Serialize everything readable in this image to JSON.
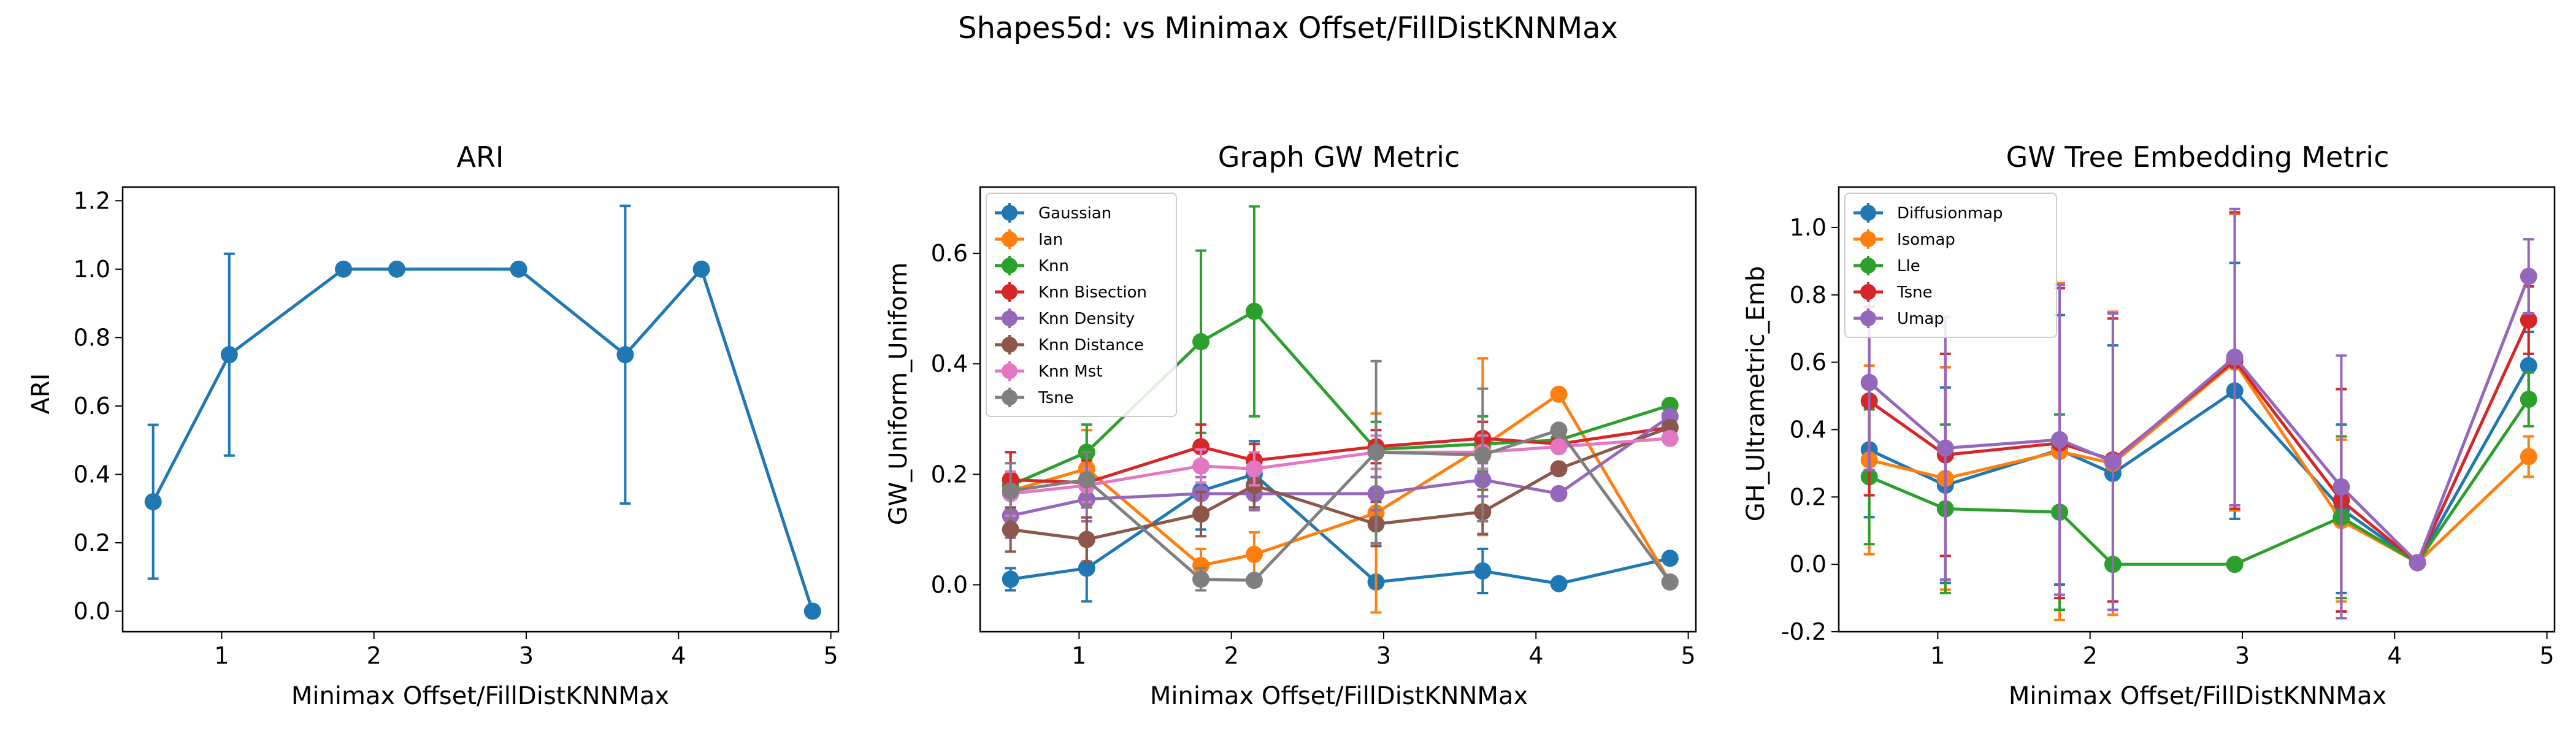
{
  "figure": {
    "suptitle": "Shapes5d: vs Minimax Offset/FillDistKNNMax"
  },
  "colors": {
    "blue": "#1f77b4",
    "orange": "#ff7f0e",
    "green": "#2ca02c",
    "red": "#d62728",
    "purple": "#9467bd",
    "brown": "#8c564b",
    "pink": "#e377c2",
    "gray": "#7f7f7f"
  },
  "chart_data": [
    {
      "type": "line",
      "title": "ARI",
      "xlabel": "Minimax Offset/FillDistKNNMax",
      "ylabel": "ARI",
      "xlim": [
        0.35,
        5.05
      ],
      "ylim": [
        -0.06,
        1.24
      ],
      "xticks": [
        1,
        2,
        3,
        4,
        5
      ],
      "yticks": [
        0.0,
        0.2,
        0.4,
        0.6,
        0.8,
        1.0,
        1.2
      ],
      "x": [
        0.55,
        1.05,
        1.8,
        2.15,
        2.95,
        3.65,
        4.15,
        4.88
      ],
      "legend": null,
      "series": [
        {
          "color": "#1f77b4",
          "y": [
            0.32,
            0.75,
            1.0,
            1.0,
            1.0,
            0.75,
            1.0,
            0.0
          ],
          "err": [
            0.225,
            0.295,
            0,
            0,
            0,
            0.435,
            0,
            0
          ]
        }
      ]
    },
    {
      "type": "line",
      "title": "Graph GW Metric",
      "xlabel": "Minimax Offset/FillDistKNNMax",
      "ylabel": "GW_Uniform_Uniform",
      "xlim": [
        0.35,
        5.05
      ],
      "ylim": [
        -0.085,
        0.72
      ],
      "xticks": [
        1,
        2,
        3,
        4,
        5
      ],
      "yticks": [
        0.0,
        0.2,
        0.4,
        0.6
      ],
      "x": [
        0.55,
        1.05,
        1.8,
        2.15,
        2.95,
        3.65,
        4.15,
        4.88
      ],
      "legend": "upper left",
      "series": [
        {
          "name": "Gaussian",
          "color": "#1f77b4",
          "y": [
            0.01,
            0.03,
            0.17,
            0.2,
            0.005,
            0.025,
            0.002,
            0.048
          ],
          "err": [
            0.02,
            0.06,
            0.07,
            0.06,
            0.0,
            0.04,
            0.0,
            0.0
          ]
        },
        {
          "name": "Ian",
          "color": "#ff7f0e",
          "y": [
            0.17,
            0.21,
            0.035,
            0.055,
            0.13,
            0.25,
            0.345,
            0.005
          ],
          "err": [
            0.07,
            0.07,
            0.03,
            0.04,
            0.18,
            0.16,
            0.0,
            0.0
          ]
        },
        {
          "name": "Knn",
          "color": "#2ca02c",
          "y": [
            0.18,
            0.24,
            0.44,
            0.495,
            0.245,
            0.255,
            0.262,
            0.325
          ],
          "err": [
            0.06,
            0.05,
            0.165,
            0.19,
            0.05,
            0.05,
            0.0,
            0.0
          ]
        },
        {
          "name": "Knn Bisection",
          "color": "#d62728",
          "y": [
            0.19,
            0.185,
            0.25,
            0.225,
            0.25,
            0.265,
            0.255,
            0.285
          ],
          "err": [
            0.05,
            0.04,
            0.04,
            0.03,
            0.03,
            0.03,
            0.0,
            0.0
          ]
        },
        {
          "name": "Knn Density",
          "color": "#9467bd",
          "y": [
            0.125,
            0.155,
            0.165,
            0.165,
            0.165,
            0.19,
            0.165,
            0.305
          ],
          "err": [
            0.04,
            0.04,
            0.03,
            0.03,
            0.03,
            0.03,
            0.0,
            0.0
          ]
        },
        {
          "name": "Knn Distance",
          "color": "#8c564b",
          "y": [
            0.1,
            0.082,
            0.128,
            0.18,
            0.11,
            0.132,
            0.21,
            0.285
          ],
          "err": [
            0.04,
            0.04,
            0.04,
            0.04,
            0.04,
            0.04,
            0.0,
            0.0
          ]
        },
        {
          "name": "Knn Mst",
          "color": "#e377c2",
          "y": [
            0.165,
            0.18,
            0.215,
            0.21,
            0.24,
            0.24,
            0.25,
            0.265
          ],
          "err": [
            0.04,
            0.03,
            0.03,
            0.03,
            0.03,
            0.03,
            0.0,
            0.0
          ]
        },
        {
          "name": "Tsne",
          "color": "#7f7f7f",
          "y": [
            0.17,
            0.19,
            0.01,
            0.008,
            0.24,
            0.235,
            0.28,
            0.005
          ],
          "err": [
            0.05,
            0.05,
            0.02,
            0.01,
            0.165,
            0.12,
            0.0,
            0.0
          ]
        }
      ]
    },
    {
      "type": "line",
      "title": "GW Tree Embedding Metric",
      "xlabel": "Minimax Offset/FillDistKNNMax",
      "ylabel": "GH_Ultrametric_Emb",
      "xlim": [
        0.35,
        5.05
      ],
      "ylim": [
        -0.2,
        1.12
      ],
      "xticks": [
        1,
        2,
        3,
        4,
        5
      ],
      "yticks": [
        -0.2,
        0.0,
        0.2,
        0.4,
        0.6,
        0.8,
        1.0
      ],
      "x": [
        0.55,
        1.05,
        1.8,
        2.15,
        2.95,
        3.65,
        4.15,
        4.88
      ],
      "legend": "upper left",
      "series": [
        {
          "name": "Diffusionmap",
          "color": "#1f77b4",
          "y": [
            0.34,
            0.235,
            0.34,
            0.27,
            0.515,
            0.165,
            0.005,
            0.59
          ],
          "err": [
            0.2,
            0.29,
            0.4,
            0.38,
            0.38,
            0.25,
            0.0,
            0.1
          ]
        },
        {
          "name": "Isomap",
          "color": "#ff7f0e",
          "y": [
            0.31,
            0.255,
            0.335,
            0.3,
            0.6,
            0.13,
            0.005,
            0.32
          ],
          "err": [
            0.28,
            0.33,
            0.5,
            0.45,
            0.44,
            0.24,
            0.0,
            0.06
          ]
        },
        {
          "name": "Lle",
          "color": "#2ca02c",
          "y": [
            0.26,
            0.165,
            0.155,
            0.0,
            0.0,
            0.14,
            0.005,
            0.49
          ],
          "err": [
            0.2,
            0.25,
            0.29,
            0.0,
            0.0,
            0.24,
            0.0,
            0.08
          ]
        },
        {
          "name": "Tsne",
          "color": "#d62728",
          "y": [
            0.485,
            0.325,
            0.36,
            0.31,
            0.605,
            0.19,
            0.005,
            0.725
          ],
          "err": [
            0.28,
            0.3,
            0.46,
            0.42,
            0.44,
            0.33,
            0.0,
            0.1
          ]
        },
        {
          "name": "Umap",
          "color": "#9467bd",
          "y": [
            0.54,
            0.345,
            0.37,
            0.305,
            0.615,
            0.23,
            0.005,
            0.855
          ],
          "err": [
            0.26,
            0.39,
            0.46,
            0.44,
            0.44,
            0.39,
            0.0,
            0.11
          ]
        }
      ]
    }
  ]
}
